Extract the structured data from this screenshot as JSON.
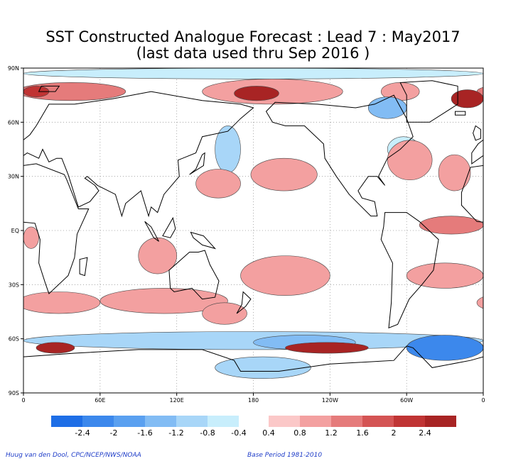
{
  "title_line1": "SST Constructed Analogue Forecast : Lead 7 : May2017",
  "title_line2": "(last data used thru Sep 2016 )",
  "credit_left": "Huug van den Dool, CPC/NCEP/NWS/NOAA",
  "credit_right": "Base Period 1981-2010",
  "colors": {
    "negative": [
      "#1e6ee6",
      "#3c88ec",
      "#5aa0f0",
      "#82bcf4",
      "#a8d6f8",
      "#c8eefc"
    ],
    "positive": [
      "#fbc8c8",
      "#f3a0a0",
      "#e57b7b",
      "#d45454",
      "#c03434",
      "#a82424"
    ],
    "coast": "#000000",
    "grid": "#999999"
  },
  "chart_data": {
    "type": "heatmap",
    "title": "SST Constructed Analogue Forecast : Lead 7 : May2017",
    "subtitle": "(last data used thru Sep 2016 )",
    "xlabel": "",
    "ylabel": "",
    "x_ticks": [
      "0",
      "60E",
      "120E",
      "180",
      "120W",
      "60W",
      "0"
    ],
    "y_ticks": [
      "90N",
      "60N",
      "30N",
      "EQ",
      "30S",
      "60S",
      "90S"
    ],
    "xlim": [
      0,
      360
    ],
    "ylim": [
      -90,
      90
    ],
    "grid": true,
    "colorbar_labels": [
      "-2.4",
      "-2",
      "-1.6",
      "-1.2",
      "-0.8",
      "-0.4",
      "0.4",
      "0.8",
      "1.2",
      "1.6",
      "2",
      "2.4"
    ],
    "colorbar_levels": [
      -2.8,
      -2.4,
      -2.0,
      -1.6,
      -1.2,
      -0.8,
      -0.4,
      0.4,
      0.8,
      1.2,
      1.6,
      2.0,
      2.4,
      2.8
    ],
    "units": "",
    "anomaly_regions": [
      {
        "lon": [
          355,
          80
        ],
        "lat": [
          72,
          82
        ],
        "value": 1.2
      },
      {
        "lon": [
          0,
          20
        ],
        "lat": [
          74,
          80
        ],
        "value": 2.0
      },
      {
        "lon": [
          140,
          250
        ],
        "lat": [
          70,
          84
        ],
        "value": 1.0
      },
      {
        "lon": [
          165,
          200
        ],
        "lat": [
          72,
          80
        ],
        "value": 2.6
      },
      {
        "lon": [
          280,
          310
        ],
        "lat": [
          72,
          82
        ],
        "value": 1.0
      },
      {
        "lon": [
          335,
          360
        ],
        "lat": [
          68,
          78
        ],
        "value": 2.4
      },
      {
        "lon": [
          0,
          360
        ],
        "lat": [
          84,
          90
        ],
        "value": -0.8
      },
      {
        "lon": [
          270,
          300
        ],
        "lat": [
          62,
          74
        ],
        "value": -1.6
      },
      {
        "lon": [
          150,
          170
        ],
        "lat": [
          32,
          58
        ],
        "value": -1.0
      },
      {
        "lon": [
          285,
          310
        ],
        "lat": [
          38,
          52
        ],
        "value": -0.8
      },
      {
        "lon": [
          178,
          230
        ],
        "lat": [
          22,
          40
        ],
        "value": 0.8
      },
      {
        "lon": [
          135,
          170
        ],
        "lat": [
          18,
          34
        ],
        "value": 0.8
      },
      {
        "lon": [
          285,
          320
        ],
        "lat": [
          28,
          50
        ],
        "value": 0.8
      },
      {
        "lon": [
          325,
          350
        ],
        "lat": [
          22,
          42
        ],
        "value": 0.8
      },
      {
        "lon": [
          310,
          360
        ],
        "lat": [
          -2,
          8
        ],
        "value": 1.2
      },
      {
        "lon": [
          0,
          12
        ],
        "lat": [
          -10,
          2
        ],
        "value": 0.8
      },
      {
        "lon": [
          90,
          120
        ],
        "lat": [
          -24,
          -4
        ],
        "value": 0.8
      },
      {
        "lon": [
          170,
          240
        ],
        "lat": [
          -36,
          -14
        ],
        "value": 0.8
      },
      {
        "lon": [
          300,
          360
        ],
        "lat": [
          -32,
          -18
        ],
        "value": 0.8
      },
      {
        "lon": [
          355,
          60
        ],
        "lat": [
          -46,
          -34
        ],
        "value": 0.8
      },
      {
        "lon": [
          60,
          160
        ],
        "lat": [
          -46,
          -32
        ],
        "value": 0.8
      },
      {
        "lon": [
          140,
          175
        ],
        "lat": [
          -52,
          -40
        ],
        "value": 0.8
      },
      {
        "lon": [
          0,
          360
        ],
        "lat": [
          -66,
          -56
        ],
        "value": -1.0
      },
      {
        "lon": [
          300,
          360
        ],
        "lat": [
          -72,
          -58
        ],
        "value": -2.2
      },
      {
        "lon": [
          180,
          260
        ],
        "lat": [
          -66,
          -58
        ],
        "value": -1.6
      },
      {
        "lon": [
          10,
          40
        ],
        "lat": [
          -68,
          -62
        ],
        "value": 2.6
      },
      {
        "lon": [
          205,
          270
        ],
        "lat": [
          -68,
          -62
        ],
        "value": 2.6
      },
      {
        "lon": [
          150,
          225
        ],
        "lat": [
          -82,
          -70
        ],
        "value": -1.2
      }
    ]
  }
}
